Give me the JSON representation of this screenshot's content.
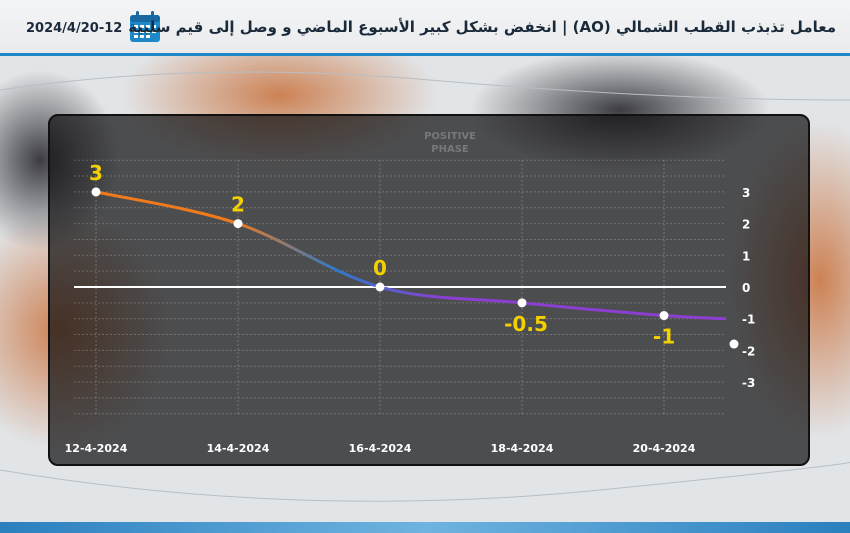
{
  "header": {
    "title": "معامل تذبذب القطب الشمالي (AO) | انخفض بشكل كبير الأسبوع الماضي و وصل إلى قيم سلبية",
    "date": "2024/4/20-12",
    "calendar_icon": "calendar-icon"
  },
  "watermark": {
    "line1": "POSITIVE",
    "line2": "PHASE"
  },
  "colors": {
    "accent": "#1e88c8",
    "label_yellow": "#f5d000",
    "line_orange": "#f07a1c",
    "line_blue": "#2f79c9",
    "line_purple": "#8a3fd1",
    "zero_line": "#ffffff"
  },
  "chart_data": {
    "type": "line",
    "title": "",
    "xlabel": "",
    "ylabel": "",
    "x": [
      "12-4-2024",
      "14-4-2024",
      "16-4-2024",
      "18-4-2024",
      "20-4-2024"
    ],
    "series": [
      {
        "values": [
          3,
          2,
          0,
          -0.5,
          -0.9
        ]
      }
    ],
    "data_labels": [
      "3",
      "2",
      "0",
      "-0.5",
      "-1"
    ],
    "end_value": -1.0,
    "extra_point": {
      "x_index": 5,
      "value": -1.8
    },
    "yticks": [
      "3",
      "2",
      "1",
      "0",
      "-1",
      "-2",
      "-3"
    ],
    "ylim": [
      -4,
      4
    ],
    "grid": true
  }
}
